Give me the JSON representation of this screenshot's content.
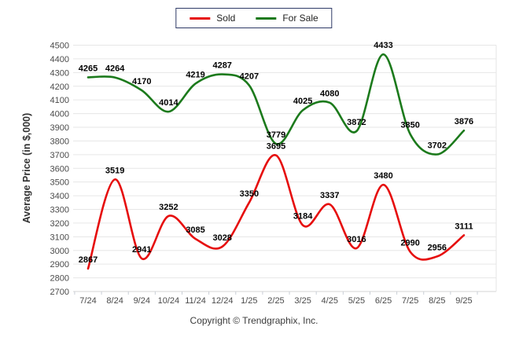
{
  "legend": {
    "border_color": "#2e3a66",
    "items": [
      {
        "label": "Sold",
        "color": "#e60d0d"
      },
      {
        "label": "For Sale",
        "color": "#1c7a1c"
      }
    ]
  },
  "footer": {
    "text": "Copyright © Trendgraphix, Inc."
  },
  "chart_data": {
    "type": "line",
    "title": "",
    "xlabel": "",
    "ylabel": "Average Price (in $,000)",
    "categories": [
      "7/24",
      "8/24",
      "9/24",
      "10/24",
      "11/24",
      "12/24",
      "1/25",
      "2/25",
      "3/25",
      "4/25",
      "5/25",
      "6/25",
      "7/25",
      "8/25",
      "9/25"
    ],
    "series": [
      {
        "name": "Sold",
        "color": "#e60d0d",
        "values": [
          2867,
          3519,
          2941,
          3252,
          3085,
          3028,
          3350,
          3695,
          3184,
          3337,
          3016,
          3480,
          2990,
          2956,
          3111
        ]
      },
      {
        "name": "For Sale",
        "color": "#1c7a1c",
        "values": [
          4265,
          4264,
          4170,
          4014,
          4219,
          4287,
          4207,
          3779,
          4025,
          4080,
          3872,
          4433,
          3850,
          3702,
          3876
        ]
      }
    ],
    "ylim": [
      2700,
      4500
    ],
    "ytick_step": 100,
    "grid": "horizontal",
    "smooth": true,
    "legend_position": "top-center",
    "colors": {
      "gridline": "#e6e6e6",
      "axis_line": "#d6d6d6",
      "tick_mark": "#c9ced6",
      "axis_text": "#4a4a4a",
      "data_label": "#000000",
      "ylabel_text": "#333333"
    }
  }
}
